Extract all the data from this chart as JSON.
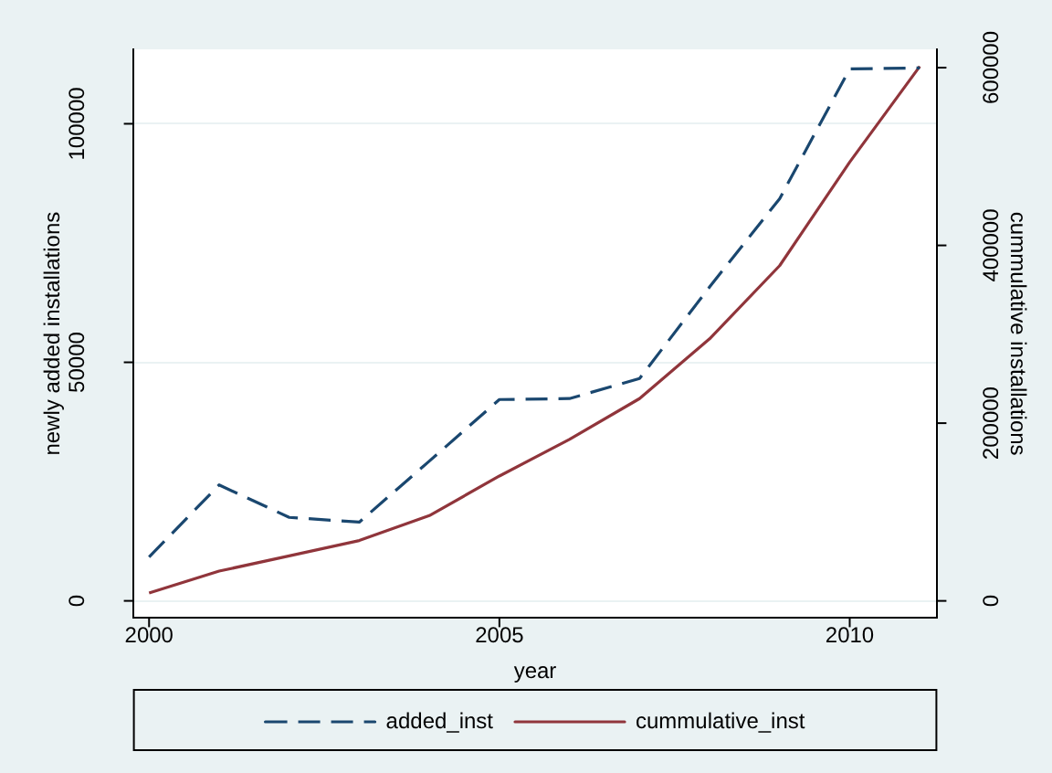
{
  "chart_data": {
    "type": "line",
    "xlabel": "year",
    "ylabel": "newly added installations",
    "y2label": "cummulative installations",
    "x": [
      2000,
      2001,
      2002,
      2003,
      2004,
      2005,
      2006,
      2007,
      2008,
      2009,
      2010,
      2011
    ],
    "series": [
      {
        "name": "added_inst",
        "color": "#1a476f",
        "line_style": "dashed",
        "values": [
          9200,
          24300,
          17500,
          16500,
          29300,
          42200,
          42400,
          46600,
          65800,
          84300,
          111500,
          111700
        ]
      },
      {
        "name": "cummulative_inst",
        "color": "#90353b",
        "line_style": "solid",
        "axis": "y2",
        "values": [
          8800,
          33500,
          50600,
          67900,
          95900,
          140500,
          181700,
          227600,
          294900,
          377200,
          493800,
          601400
        ]
      }
    ],
    "xlim": [
      1999.77,
      2011.25
    ],
    "xticks": [
      2000,
      2005,
      2010
    ],
    "ylim": [
      -3600,
      115600
    ],
    "yticks": [
      0,
      50000,
      100000
    ],
    "y2lim": [
      -19300,
      620600
    ],
    "y2ticks": [
      0,
      200000,
      400000,
      600000
    ],
    "grid": "y",
    "legend": "bottom",
    "marker": "none"
  }
}
